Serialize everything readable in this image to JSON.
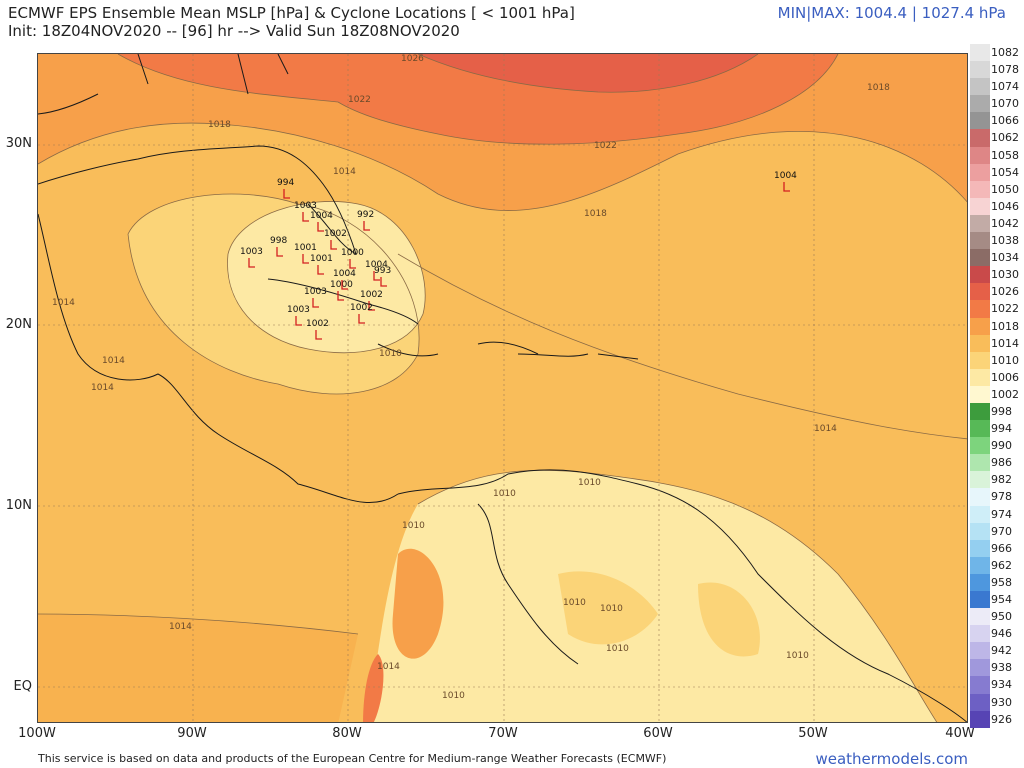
{
  "header": {
    "title_line1": "ECMWF EPS Ensemble Mean MSLP [hPa] & Cyclone Locations [ < 1001 hPa]",
    "title_line2": "Init: 18Z04NOV2020 -- [96] hr --> Valid Sun 18Z08NOV2020",
    "minmax": "MIN|MAX: 1004.4 | 1027.4 hPa"
  },
  "axes": {
    "lat_labels": [
      "30N",
      "20N",
      "10N",
      "EQ"
    ],
    "lon_labels": [
      "100W",
      "90W",
      "80W",
      "70W",
      "60W",
      "50W",
      "40W"
    ]
  },
  "colorbar": [
    {
      "label": "1082",
      "color": "#e8e8e8"
    },
    {
      "label": "1078",
      "color": "#d8d8d8"
    },
    {
      "label": "1074",
      "color": "#c4c4c4"
    },
    {
      "label": "1070",
      "color": "#ababab"
    },
    {
      "label": "1066",
      "color": "#949494"
    },
    {
      "label": "1062",
      "color": "#c96a6a"
    },
    {
      "label": "1058",
      "color": "#de8686"
    },
    {
      "label": "1054",
      "color": "#ec9f9f"
    },
    {
      "label": "1050",
      "color": "#f4b8b8"
    },
    {
      "label": "1046",
      "color": "#f7d3d3"
    },
    {
      "label": "1042",
      "color": "#c2aba6"
    },
    {
      "label": "1038",
      "color": "#a58b85"
    },
    {
      "label": "1034",
      "color": "#8b6c66"
    },
    {
      "label": "1030",
      "color": "#c94a4a"
    },
    {
      "label": "1026",
      "color": "#e56048"
    },
    {
      "label": "1022",
      "color": "#f27a46"
    },
    {
      "label": "1018",
      "color": "#f7a04a"
    },
    {
      "label": "1014",
      "color": "#f9bd5a"
    },
    {
      "label": "1010",
      "color": "#fbd478"
    },
    {
      "label": "1006",
      "color": "#fde9a4"
    },
    {
      "label": "1002",
      "color": "#fff8d0"
    },
    {
      "label": "998",
      "color": "#3d9c3d"
    },
    {
      "label": "994",
      "color": "#57b957"
    },
    {
      "label": "990",
      "color": "#7dd47d"
    },
    {
      "label": "986",
      "color": "#aee6ae"
    },
    {
      "label": "982",
      "color": "#d9f3d9"
    },
    {
      "label": "978",
      "color": "#e7f6fb"
    },
    {
      "label": "974",
      "color": "#cfeef8"
    },
    {
      "label": "970",
      "color": "#b5e2f4"
    },
    {
      "label": "966",
      "color": "#94cff0"
    },
    {
      "label": "962",
      "color": "#6fb5e8"
    },
    {
      "label": "958",
      "color": "#4e97de"
    },
    {
      "label": "954",
      "color": "#3a78d0"
    },
    {
      "label": "950",
      "color": "#ecebf7"
    },
    {
      "label": "946",
      "color": "#d7d3f0"
    },
    {
      "label": "942",
      "color": "#bdb6e7"
    },
    {
      "label": "938",
      "color": "#a098dc"
    },
    {
      "label": "934",
      "color": "#867bd0"
    },
    {
      "label": "930",
      "color": "#6d60c4"
    },
    {
      "label": "926",
      "color": "#5744b4"
    }
  ],
  "contour_labels": [
    "1026",
    "1022",
    "1022",
    "1018",
    "1018",
    "1018",
    "1014",
    "1014",
    "1014",
    "1014",
    "1014",
    "1014",
    "1014",
    "1010",
    "1010",
    "1010",
    "1010",
    "1010",
    "1010",
    "1010",
    "1010",
    "1010"
  ],
  "cyclone_lows": [
    "994",
    "1003",
    "1003",
    "1003",
    "1004",
    "992",
    "998",
    "1001",
    "1001",
    "1000",
    "1002",
    "1000",
    "1004",
    "993",
    "1003",
    "1002",
    "1002",
    "1002",
    "1004",
    "1004"
  ],
  "footer": {
    "credit": "This service is based on data and products of the European Centre for Medium-range Weather Forecasts (ECMWF)",
    "brand": "weathermodels.com"
  },
  "colors": {
    "accent": "#3a5ec0",
    "low_marker": "#d42020",
    "land_outline": "#1a1a1a"
  }
}
